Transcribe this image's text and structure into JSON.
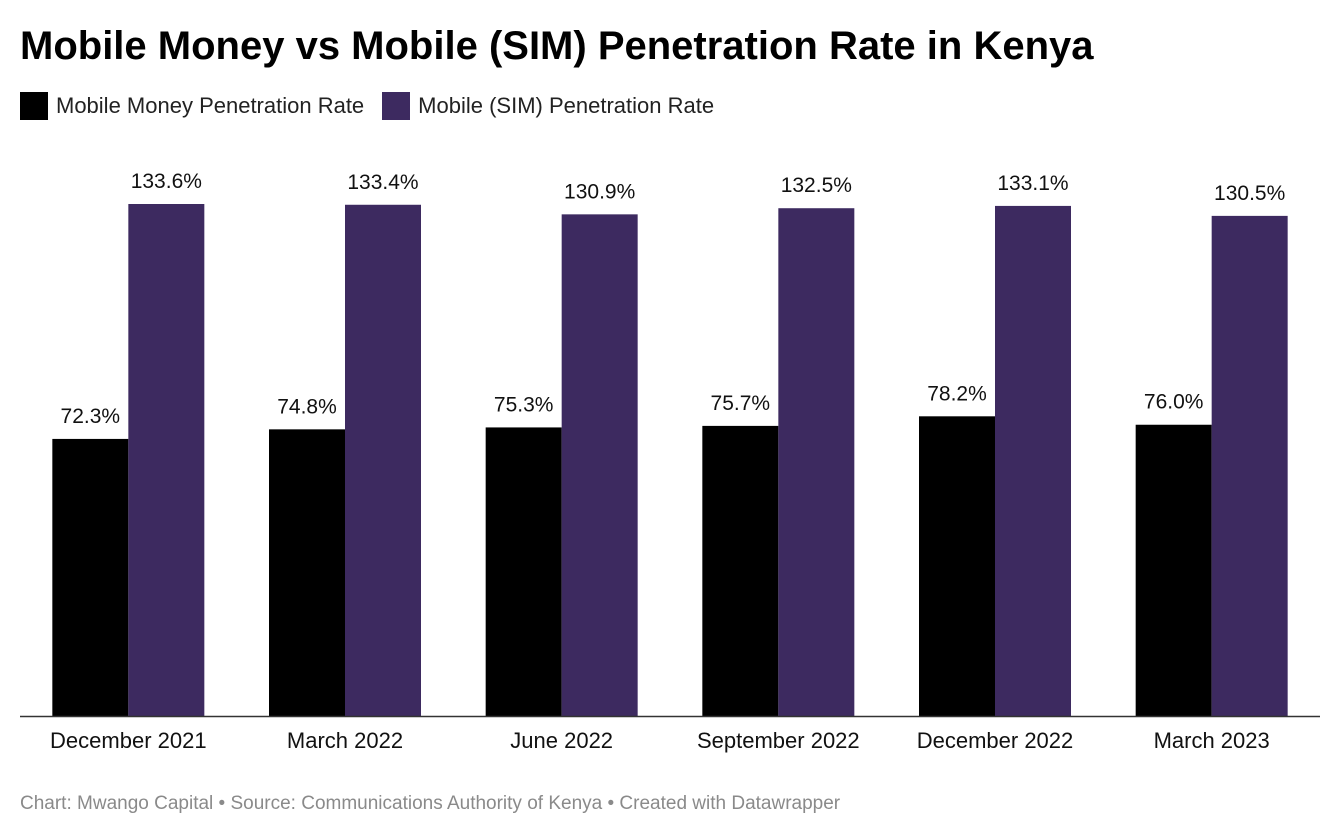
{
  "title": "Mobile Money vs Mobile (SIM) Penetration Rate in Kenya",
  "footer": "Chart: Mwango Capital • Source: Communications Authority of Kenya • Created with Datawrapper",
  "colors": {
    "mobile_money": "#000000",
    "mobile_sim": "#3d2a60",
    "axis": "#333333"
  },
  "chart_data": {
    "type": "bar",
    "categories": [
      "December 2021",
      "March 2022",
      "June 2022",
      "September 2022",
      "December 2022",
      "March 2023"
    ],
    "series": [
      {
        "name": "Mobile Money Penetration Rate",
        "values": [
          72.3,
          74.8,
          75.3,
          75.7,
          78.2,
          76.0
        ],
        "labels": [
          "72.3%",
          "74.8%",
          "75.3%",
          "75.7%",
          "78.2%",
          "76.0%"
        ]
      },
      {
        "name": "Mobile (SIM) Penetration Rate",
        "values": [
          133.6,
          133.4,
          130.9,
          132.5,
          133.1,
          130.5
        ],
        "labels": [
          "133.6%",
          "133.4%",
          "130.9%",
          "132.5%",
          "133.1%",
          "130.5%"
        ]
      }
    ],
    "ylim": [
      0,
      133.6
    ],
    "grid": false,
    "legend": "top-left"
  }
}
